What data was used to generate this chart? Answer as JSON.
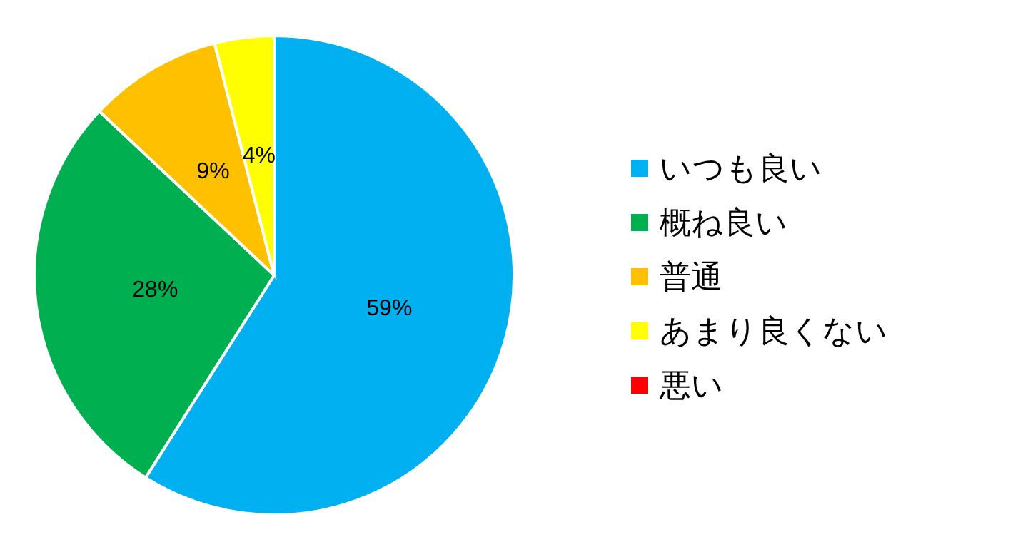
{
  "chart_data": {
    "type": "pie",
    "categories": [
      "いつも良い",
      "概ね良い",
      "普通",
      "あまり良くない",
      "悪い"
    ],
    "values": [
      59,
      28,
      9,
      4,
      0
    ],
    "colors": [
      "#00b0f0",
      "#00b050",
      "#ffc000",
      "#ffff00",
      "#ff0000"
    ],
    "value_labels": [
      "59%",
      "28%",
      "9%",
      "4%",
      null
    ],
    "legend": "right"
  }
}
